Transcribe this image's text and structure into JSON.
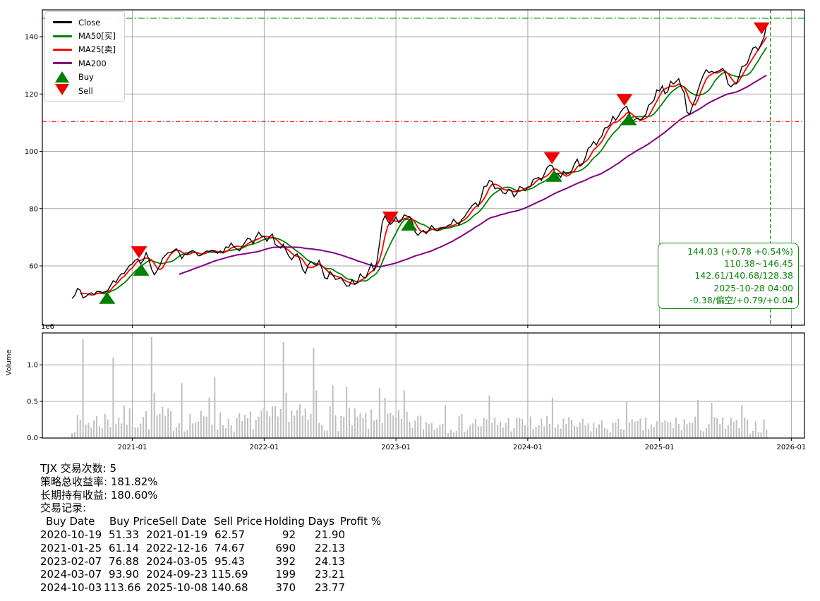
{
  "ticker": "TJX",
  "colors": {
    "close": "#000000",
    "ma50": "#008000",
    "ma25": "#ff0000",
    "ma200": "#800080",
    "upper_band_green": "#16a016",
    "lower_band_red": "#ff2d2d",
    "vline_green": "#16a016",
    "annotation_green": "#0c860c",
    "volume_bar": "#bfbfbf",
    "grid": "#a8a8a8",
    "spine": "#000000"
  },
  "legend": {
    "items": [
      {
        "label": "Close",
        "swatch": "black-line"
      },
      {
        "label": "MA50[买]",
        "swatch": "green-line"
      },
      {
        "label": "MA25[卖]",
        "swatch": "red-line"
      },
      {
        "label": "MA200",
        "swatch": "purple-line"
      },
      {
        "label": "Buy",
        "swatch": "green-up-triangle"
      },
      {
        "label": "Sell",
        "swatch": "red-down-triangle"
      }
    ]
  },
  "annotation": {
    "lines": [
      "144.03 (+0.78 +0.54%)",
      "110.38~146.45",
      "142.61/140.68/128.38",
      "2025-10-28 04:00",
      "-0.38/偏空/+0.79/+0.04"
    ]
  },
  "summary": {
    "lines": [
      "TJX 交易次数: 5",
      "策略总收益率: 181.82%",
      "长期持有收益: 180.60%",
      "交易记录:"
    ]
  },
  "trades": {
    "headers": [
      "Buy Date",
      "Buy Price",
      "Sell Date",
      "Sell Price",
      "Holding Days",
      "Profit %"
    ],
    "rows": [
      {
        "buy_date": "2020-10-19",
        "buy_price": "51.33",
        "sell_date": "2021-01-19",
        "sell_price": "62.57",
        "holding_days": "92",
        "profit_pct": "21.90"
      },
      {
        "buy_date": "2021-01-25",
        "buy_price": "61.14",
        "sell_date": "2022-12-16",
        "sell_price": "74.67",
        "holding_days": "690",
        "profit_pct": "22.13"
      },
      {
        "buy_date": "2023-02-07",
        "buy_price": "76.88",
        "sell_date": "2024-03-05",
        "sell_price": "95.43",
        "holding_days": "392",
        "profit_pct": "24.13"
      },
      {
        "buy_date": "2024-03-07",
        "buy_price": "93.90",
        "sell_date": "2024-09-23",
        "sell_price": "115.69",
        "holding_days": "199",
        "profit_pct": "23.21"
      },
      {
        "buy_date": "2024-10-03",
        "buy_price": "113.66",
        "sell_date": "2025-10-08",
        "sell_price": "140.68",
        "holding_days": "370",
        "profit_pct": "23.77"
      }
    ]
  },
  "chart_data": [
    {
      "type": "line",
      "title": "",
      "month_origin": "2020-07",
      "x_axis": {
        "tick_labels": [
          "2021-01",
          "2022-01",
          "2023-01",
          "2024-01",
          "2025-01",
          "2026-01"
        ],
        "tick_months": [
          6,
          18,
          30,
          42,
          54,
          66
        ],
        "range_months": [
          -2.2,
          67.2
        ]
      },
      "y_axis": {
        "ticks": [
          60,
          80,
          100,
          120,
          140
        ],
        "range": [
          39.3,
          149.4
        ]
      },
      "levels": {
        "upper_band": 146.45,
        "lower_band": 110.38,
        "vline_month": 64.1,
        "last_price": 144.03,
        "last_change": "+0.78 +0.54%",
        "last_date": "2025-10-28 04:00"
      },
      "series": [
        {
          "name": "Close",
          "color": "#000000",
          "points": [
            [
              0.5,
              48.5
            ],
            [
              0.8,
              50.0
            ],
            [
              1.1,
              52.5
            ],
            [
              1.6,
              48.5
            ],
            [
              2.1,
              51.0
            ],
            [
              2.5,
              49.5
            ],
            [
              2.9,
              52.0
            ],
            [
              3.3,
              50.0
            ],
            [
              3.7,
              51.3
            ],
            [
              4.2,
              55.0
            ],
            [
              4.5,
              54.0
            ],
            [
              5.0,
              58.0
            ],
            [
              5.4,
              57.0
            ],
            [
              5.7,
              61.0
            ],
            [
              6.1,
              60.5
            ],
            [
              6.3,
              63.5
            ],
            [
              6.6,
              62.6
            ],
            [
              6.8,
              61.1
            ],
            [
              7.3,
              64.5
            ],
            [
              7.7,
              60.0
            ],
            [
              8.1,
              56.5
            ],
            [
              8.6,
              61.0
            ],
            [
              9.0,
              64.0
            ],
            [
              9.9,
              66.5
            ],
            [
              10.5,
              63.0
            ],
            [
              11.3,
              65.5
            ],
            [
              12.0,
              63.5
            ],
            [
              12.9,
              66.0
            ],
            [
              13.8,
              64.0
            ],
            [
              15.1,
              67.5
            ],
            [
              15.8,
              66.0
            ],
            [
              16.5,
              69.5
            ],
            [
              16.9,
              68.0
            ],
            [
              17.6,
              71.5
            ],
            [
              18.2,
              69.0
            ],
            [
              18.7,
              71.0
            ],
            [
              19.3,
              65.5
            ],
            [
              19.8,
              67.0
            ],
            [
              20.4,
              62.0
            ],
            [
              21.0,
              64.5
            ],
            [
              21.7,
              57.0
            ],
            [
              22.2,
              61.5
            ],
            [
              22.7,
              59.0
            ],
            [
              23.0,
              62.0
            ],
            [
              23.6,
              55.0
            ],
            [
              24.1,
              58.5
            ],
            [
              24.6,
              54.0
            ],
            [
              25.0,
              56.5
            ],
            [
              25.5,
              52.5
            ],
            [
              26.1,
              55.0
            ],
            [
              26.4,
              53.0
            ],
            [
              26.8,
              57.5
            ],
            [
              27.2,
              55.5
            ],
            [
              27.7,
              61.0
            ],
            [
              28.1,
              58.0
            ],
            [
              28.6,
              70.0
            ],
            [
              28.9,
              79.0
            ],
            [
              29.3,
              74.5
            ],
            [
              29.5,
              74.7
            ],
            [
              29.9,
              77.0
            ],
            [
              30.2,
              75.0
            ],
            [
              30.6,
              77.5
            ],
            [
              31.2,
              76.9
            ],
            [
              31.6,
              73.5
            ],
            [
              32.0,
              70.5
            ],
            [
              32.5,
              73.0
            ],
            [
              32.9,
              71.5
            ],
            [
              33.3,
              74.0
            ],
            [
              33.8,
              72.5
            ],
            [
              34.3,
              74.5
            ],
            [
              34.7,
              73.0
            ],
            [
              35.4,
              76.0
            ],
            [
              35.8,
              75.0
            ],
            [
              36.5,
              79.0
            ],
            [
              37.1,
              82.0
            ],
            [
              37.5,
              81.0
            ],
            [
              37.9,
              86.0
            ],
            [
              38.6,
              90.5
            ],
            [
              39.1,
              86.0
            ],
            [
              39.4,
              88.0
            ],
            [
              39.9,
              85.0
            ],
            [
              40.3,
              87.5
            ],
            [
              40.7,
              84.5
            ],
            [
              41.4,
              88.0
            ],
            [
              41.8,
              87.0
            ],
            [
              42.3,
              89.0
            ],
            [
              42.8,
              91.5
            ],
            [
              43.3,
              90.0
            ],
            [
              43.7,
              93.0
            ],
            [
              44.2,
              95.4
            ],
            [
              44.4,
              93.9
            ],
            [
              44.9,
              90.0
            ],
            [
              45.2,
              92.5
            ],
            [
              45.5,
              91.0
            ],
            [
              46.0,
              94.0
            ],
            [
              46.5,
              96.5
            ],
            [
              46.9,
              95.0
            ],
            [
              47.4,
              99.0
            ],
            [
              47.9,
              103.0
            ],
            [
              48.3,
              101.0
            ],
            [
              48.7,
              106.0
            ],
            [
              49.1,
              110.5
            ],
            [
              49.4,
              108.0
            ],
            [
              49.7,
              112.0
            ],
            [
              50.1,
              109.5
            ],
            [
              50.5,
              113.0
            ],
            [
              50.9,
              115.7
            ],
            [
              51.1,
              113.7
            ],
            [
              51.5,
              110.0
            ],
            [
              51.9,
              112.5
            ],
            [
              52.3,
              109.5
            ],
            [
              52.7,
              113.0
            ],
            [
              53.2,
              116.0
            ],
            [
              53.7,
              120.0
            ],
            [
              54.2,
              123.5
            ],
            [
              54.6,
              121.0
            ],
            [
              55.0,
              124.0
            ],
            [
              55.4,
              122.0
            ],
            [
              55.7,
              124.5
            ],
            [
              56.1,
              121.5
            ],
            [
              56.4,
              118.0
            ],
            [
              56.6,
              111.5
            ],
            [
              57.0,
              117.0
            ],
            [
              57.4,
              121.0
            ],
            [
              57.8,
              125.0
            ],
            [
              58.2,
              128.0
            ],
            [
              58.6,
              126.0
            ],
            [
              59.0,
              128.5
            ],
            [
              59.3,
              127.0
            ],
            [
              59.7,
              129.5
            ],
            [
              60.1,
              126.5
            ],
            [
              60.4,
              120.5
            ],
            [
              60.6,
              125.0
            ],
            [
              60.9,
              123.0
            ],
            [
              61.3,
              128.0
            ],
            [
              61.7,
              131.0
            ],
            [
              61.9,
              129.5
            ],
            [
              62.3,
              134.0
            ],
            [
              62.7,
              137.0
            ],
            [
              62.9,
              135.5
            ],
            [
              63.2,
              139.0
            ],
            [
              63.5,
              141.0
            ],
            [
              63.6,
              143.5
            ],
            [
              63.8,
              142.0
            ],
            [
              63.9,
              144.03
            ]
          ]
        },
        {
          "name": "MA50[买]",
          "color": "#008000",
          "derived": "sma_of_close",
          "window_samples": 9,
          "end_value": 140.68
        },
        {
          "name": "MA25[卖]",
          "color": "#ff0000",
          "derived": "sma_of_close",
          "window_samples": 4,
          "end_value": 142.61
        },
        {
          "name": "MA200",
          "color": "#800080",
          "derived": "sma_of_close",
          "window_samples": 40,
          "end_value": 128.38
        }
      ],
      "buy_markers": [
        {
          "date": "2020-10-19",
          "month": 3.7,
          "price": 51.33
        },
        {
          "date": "2021-01-25",
          "month": 6.8,
          "price": 61.14
        },
        {
          "date": "2023-02-07",
          "month": 31.2,
          "price": 76.88
        },
        {
          "date": "2024-03-07",
          "month": 44.4,
          "price": 93.9
        },
        {
          "date": "2024-10-03",
          "month": 51.2,
          "price": 113.66
        }
      ],
      "sell_markers": [
        {
          "date": "2021-01-19",
          "month": 6.6,
          "price": 62.57
        },
        {
          "date": "2022-12-16",
          "month": 29.5,
          "price": 74.67
        },
        {
          "date": "2024-03-05",
          "month": 44.2,
          "price": 95.43
        },
        {
          "date": "2024-09-23",
          "month": 50.8,
          "price": 115.69
        },
        {
          "date": "2025-10-08",
          "month": 63.3,
          "price": 140.68
        }
      ]
    },
    {
      "type": "bar",
      "ylabel": "Volume",
      "scale_label": "1e6",
      "y_axis": {
        "tick_labels": [
          "0.0",
          "0.5",
          "1.0"
        ],
        "tick_values": [
          0,
          0.5,
          1.0
        ],
        "range": [
          0,
          1.44
        ]
      },
      "envelope": [
        [
          0.5,
          0.2
        ],
        [
          2,
          0.24
        ],
        [
          5,
          0.3
        ],
        [
          8,
          0.3
        ],
        [
          12,
          0.26
        ],
        [
          16,
          0.24
        ],
        [
          20,
          0.32
        ],
        [
          24,
          0.3
        ],
        [
          27,
          0.26
        ],
        [
          30,
          0.26
        ],
        [
          33,
          0.22
        ],
        [
          36,
          0.22
        ],
        [
          40,
          0.22
        ],
        [
          44,
          0.2
        ],
        [
          48,
          0.18
        ],
        [
          52,
          0.18
        ],
        [
          56,
          0.22
        ],
        [
          60,
          0.2
        ],
        [
          63.9,
          0.18
        ]
      ],
      "spikes": [
        [
          1.5,
          1.35
        ],
        [
          4.3,
          1.1
        ],
        [
          7.7,
          1.38
        ],
        [
          8.0,
          0.62
        ],
        [
          10.5,
          0.75
        ],
        [
          12.9,
          0.55
        ],
        [
          13.5,
          0.83
        ],
        [
          19.8,
          1.31
        ],
        [
          20.1,
          0.62
        ],
        [
          22.5,
          1.23
        ],
        [
          22.8,
          0.65
        ],
        [
          24.2,
          0.72
        ],
        [
          25.5,
          0.7
        ],
        [
          28.6,
          0.68
        ],
        [
          29.0,
          0.55
        ],
        [
          30.7,
          0.65
        ],
        [
          34.5,
          0.45
        ],
        [
          38.6,
          0.58
        ],
        [
          44.2,
          0.55
        ],
        [
          50.9,
          0.5
        ],
        [
          57.4,
          0.52
        ],
        [
          58.8,
          0.48
        ],
        [
          61.6,
          0.45
        ]
      ]
    }
  ]
}
